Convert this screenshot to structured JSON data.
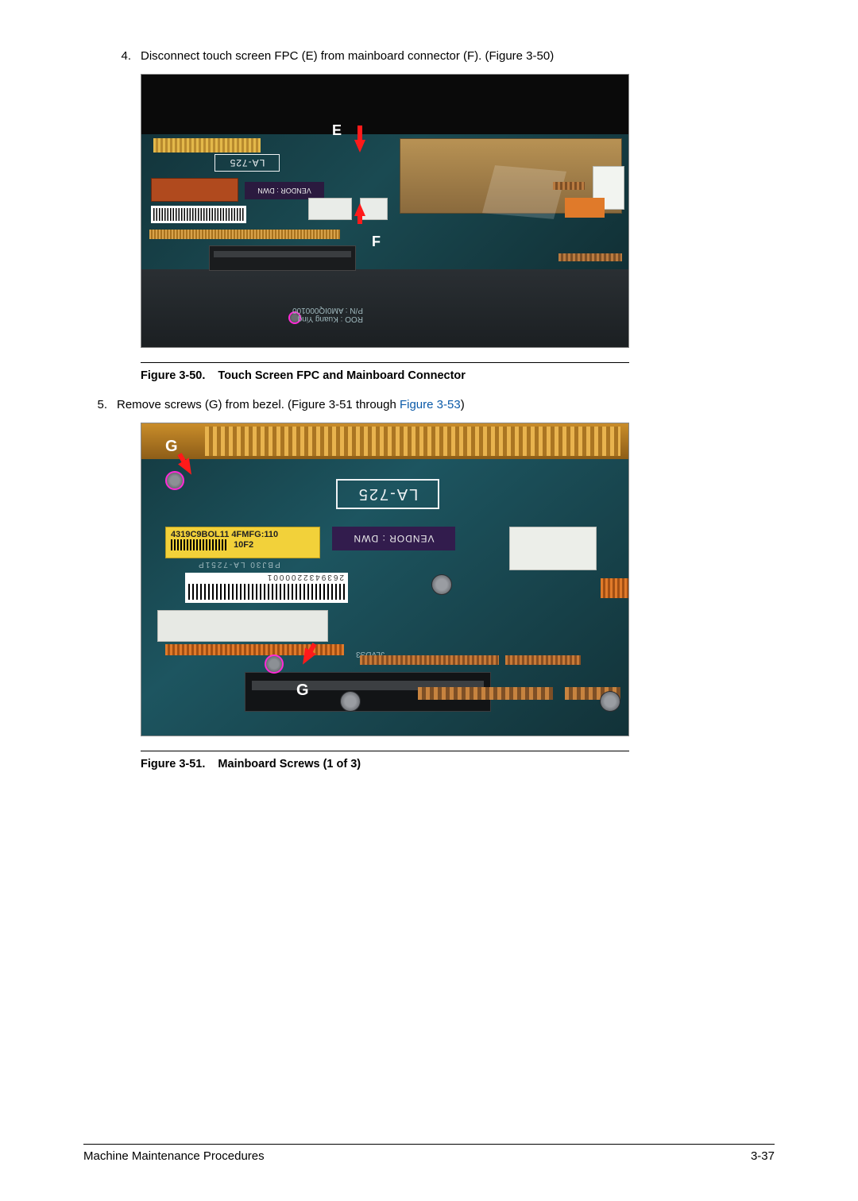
{
  "steps": {
    "s4": {
      "num": "4.",
      "text": "Disconnect touch screen FPC (E) from mainboard connector (F). (Figure 3-50)"
    },
    "s5": {
      "num": "5.",
      "text_a": "Remove screws (G) from bezel. (Figure 3-51 through ",
      "link": "Figure 3-53",
      "text_b": ")"
    }
  },
  "figures": {
    "f50": {
      "num": "Figure 3-50.",
      "title": "Touch Screen FPC and Mainboard Connector",
      "labels": {
        "E": "E",
        "F": "F"
      },
      "silk": "ROO : Kuang Ying\nP/N : AM0IQ000100",
      "la": "LA-725",
      "vendor": "VENDOR : DWN"
    },
    "f51": {
      "num": "Figure 3-51.",
      "title": "Mainboard Screws (1 of 3)",
      "labels": {
        "G1": "G",
        "G2": "G"
      },
      "la": "LA-725",
      "sticker": "4319C9BOL11 4FMFG:110",
      "sticker2": "10F2",
      "vendor": "VENDOR : DWN",
      "barcode_num": "2639432200001",
      "silk_pbj": "PBJ30  LA-7251P",
      "silk_jlvds": "JLVDS3"
    }
  },
  "footer": {
    "left": "Machine Maintenance Procedures",
    "right": "3-37"
  }
}
